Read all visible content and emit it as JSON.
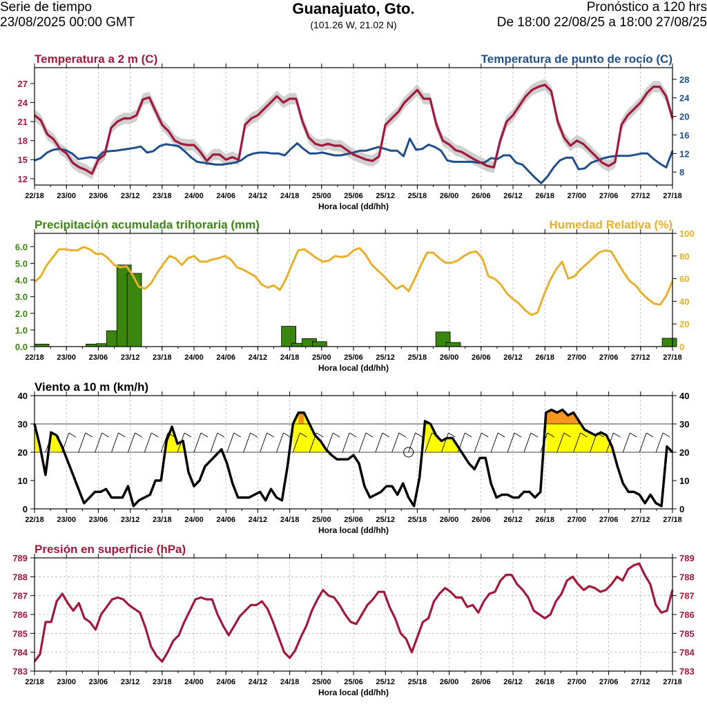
{
  "header": {
    "series_label": "Serie de tiempo",
    "issue_time": "23/08/2025 00:00 GMT",
    "location": "Guanajuato, Gto.",
    "coords": "(101.26 W, 21.02 N)",
    "forecast_label": "Pronóstico a 120 hrs",
    "forecast_range": "De 18:00 22/08/25 a 18:00 27/08/25"
  },
  "colors": {
    "temperature": "#A2183A",
    "dewpoint": "#1F4E8C",
    "precip": "#3A860E",
    "humidity": "#E9AF2A",
    "wind": "#000000",
    "pressure": "#A2183A",
    "wind_fill_20": "#FFFF00",
    "wind_fill_30": "#F7961D",
    "spread": "#D0D0D0"
  },
  "x_ticks": [
    "22/18",
    "23/00",
    "23/06",
    "23/12",
    "23/18",
    "24/00",
    "24/06",
    "24/12",
    "24/18",
    "25/00",
    "25/06",
    "25/12",
    "25/18",
    "26/00",
    "26/06",
    "26/12",
    "26/18",
    "27/00",
    "27/06",
    "27/12",
    "27/18"
  ],
  "chart_data": [
    {
      "type": "line",
      "title": "Temperatura a 2 m (C)",
      "title_right": "Temperatura de punto de rocío (C)",
      "xlabel": "Hora local (dd/hh)",
      "ylim": [
        11,
        29.5
      ],
      "yticks": [
        "12",
        "15",
        "18",
        "21",
        "24",
        "27"
      ],
      "y2lim": [
        5.2,
        30.5
      ],
      "y2ticks": [
        "8",
        "12",
        "16",
        "20",
        "24",
        "28"
      ],
      "series": [
        {
          "name": "Temperatura a 2 m",
          "axis": "left",
          "values": [
            22,
            21.2,
            19,
            18.2,
            16.7,
            16,
            14.5,
            13.8,
            13.4,
            12.8,
            15,
            15.8,
            20,
            21,
            21.5,
            21.5,
            22,
            24.5,
            24.8,
            22.6,
            20.5,
            19.5,
            18,
            17.5,
            17.3,
            17.3,
            16.2,
            14.8,
            15.8,
            15.8,
            15,
            15.4,
            15,
            20.5,
            21.5,
            22,
            23,
            24,
            25,
            24,
            24.6,
            24.6,
            21,
            18.5,
            17.5,
            17.2,
            17.5,
            17.2,
            17.2,
            16.5,
            15.8,
            15.4,
            15,
            14.8,
            15.5,
            20.5,
            21.5,
            22.5,
            24,
            25,
            26,
            24.6,
            24.6,
            20.5,
            18,
            17.4,
            16.5,
            16.2,
            15.6,
            15,
            14.5,
            14,
            13.8,
            18,
            21,
            22,
            23.5,
            25,
            26,
            26.5,
            26.8,
            25.8,
            21,
            18.5,
            17.2,
            18,
            17.5,
            16.5,
            15.5,
            14.5,
            14,
            14.6,
            20.5,
            22,
            23,
            24,
            25.5,
            26.5,
            26.5,
            25,
            21.5
          ]
        },
        {
          "name": "Temperatura de punto de rocío",
          "axis": "right",
          "values": [
            10.5,
            11,
            12.2,
            12.8,
            13,
            12.7,
            12,
            10.8,
            11,
            11.2,
            11,
            12.3,
            12.5,
            12.6,
            12.8,
            13,
            13.2,
            13.5,
            12.2,
            12.5,
            13.6,
            14,
            13.8,
            13.6,
            12.5,
            11.2,
            10.2,
            10,
            9.8,
            9.6,
            9.6,
            9.8,
            10,
            10.5,
            11.5,
            12,
            12.2,
            12.2,
            12,
            12,
            11.6,
            13,
            14.2,
            13,
            12,
            12,
            12.2,
            11.9,
            11.6,
            11.6,
            11.9,
            12.2,
            12.6,
            12.6,
            13,
            13.4,
            13,
            12.6,
            12.6,
            11.4,
            15.2,
            12.8,
            13,
            13.9,
            13.4,
            12.6,
            10.5,
            10.2,
            10.2,
            10.2,
            10.2,
            10,
            10.1,
            11,
            10.8,
            11.6,
            11.6,
            10,
            9.6,
            8.2,
            6.8,
            5.6,
            7,
            9,
            10.5,
            11.1,
            11.1,
            8.6,
            8.8,
            10,
            10.5,
            11,
            11.3,
            11.5,
            11.5,
            11.5,
            11.7,
            12,
            12,
            10.8,
            9.8,
            9,
            12.6
          ]
        }
      ]
    },
    {
      "type": "bar",
      "title": "Precipitación acumulada trihoraria (mm)",
      "title_right": "Humedad Relativa (%)",
      "xlabel": "Hora local (dd/hh)",
      "ylim": [
        0,
        6.8
      ],
      "yticks": [
        "0.0",
        "1.0",
        "2.0",
        "3.0",
        "4.0",
        "5.0",
        "6.0"
      ],
      "y2lim": [
        0,
        100
      ],
      "y2ticks": [
        "0",
        "20",
        "40",
        "60",
        "80",
        "100"
      ],
      "series": [
        {
          "name": "Precipitación acumulada trihoraria",
          "axis": "left",
          "type": "bar",
          "values": [
            0.15,
            0,
            0,
            0,
            0,
            0.15,
            0.18,
            0.95,
            4.9,
            4.4,
            0,
            0,
            0,
            0,
            0,
            0,
            0,
            0,
            0,
            0,
            0,
            0,
            0,
            0,
            1.22,
            0.2,
            0.48,
            0.3,
            0,
            0,
            0,
            0,
            0,
            0,
            0,
            0,
            0,
            0,
            0,
            0.88,
            0.25,
            0,
            0,
            0,
            0,
            0,
            0,
            0,
            0,
            0,
            0,
            0,
            0,
            0,
            0,
            0,
            0,
            0,
            0,
            0,
            0,
            0.5
          ]
        },
        {
          "name": "Humedad Relativa",
          "axis": "right",
          "type": "line",
          "values": [
            57,
            62,
            72,
            79,
            86,
            86,
            85,
            85,
            88,
            86,
            82,
            82,
            78,
            72,
            70,
            71,
            63,
            53,
            51,
            56,
            65,
            73,
            80,
            78,
            72,
            78,
            80,
            75,
            75,
            77,
            78,
            80,
            77,
            70,
            68,
            65,
            62,
            55,
            52,
            54,
            50,
            60,
            73,
            85,
            86,
            82,
            78,
            75,
            76,
            80,
            79,
            80,
            85,
            87,
            81,
            72,
            67,
            62,
            56,
            51,
            54,
            49,
            60,
            72,
            83,
            83,
            78,
            74,
            74,
            76,
            80,
            83,
            84,
            78,
            62,
            60,
            55,
            47,
            42,
            38,
            32,
            28,
            30,
            45,
            58,
            68,
            75,
            60,
            62,
            68,
            73,
            78,
            83,
            85,
            84,
            75,
            66,
            58,
            54,
            47,
            42,
            38,
            37,
            45,
            58
          ]
        }
      ]
    },
    {
      "type": "line",
      "title": "Viento a 10 m (km/h)",
      "xlabel": "Hora local (dd/hh)",
      "ylim": [
        0,
        40
      ],
      "yticks": [
        "0",
        "10",
        "20",
        "30",
        "40"
      ],
      "y2ticks": [
        "0",
        "10",
        "20",
        "30",
        "40"
      ],
      "series": [
        {
          "name": "Viento a 10 m",
          "values": [
            30,
            22,
            12,
            27,
            26,
            22,
            17,
            12,
            7,
            2,
            4,
            6,
            6,
            7,
            4,
            4,
            4,
            8,
            1,
            3,
            4,
            5,
            10,
            10,
            24,
            29,
            23,
            24,
            13,
            8,
            10,
            15,
            17,
            19,
            21,
            16,
            9,
            4,
            4,
            4,
            5,
            6,
            3,
            7,
            4,
            3,
            15,
            30,
            34,
            34,
            30,
            26,
            24,
            21,
            19,
            17.5,
            17.5,
            17.5,
            19,
            16,
            8,
            4,
            5,
            6,
            8,
            8,
            5,
            9,
            4,
            1,
            11,
            31,
            30,
            26,
            24,
            25,
            25,
            22,
            19,
            16,
            14,
            18,
            18,
            9,
            4,
            5,
            5,
            4,
            4,
            6,
            6,
            4,
            6,
            34,
            35,
            34,
            35,
            33,
            34,
            31,
            28,
            27,
            26,
            27,
            26,
            22,
            15,
            9,
            6,
            6,
            5,
            2,
            5,
            2,
            1,
            22,
            20
          ]
        }
      ]
    },
    {
      "type": "line",
      "title": "Presión en superficie (hPa)",
      "xlabel": "Hora local (dd/hh)",
      "ylim": [
        783,
        789
      ],
      "yticks": [
        "783",
        "784",
        "785",
        "786",
        "787",
        "788",
        "789"
      ],
      "y2ticks": [
        "783",
        "784",
        "785",
        "786",
        "787",
        "788",
        "789"
      ],
      "series": [
        {
          "name": "Presión en superficie",
          "values": [
            783.5,
            783.9,
            785.6,
            785.6,
            786.7,
            787.1,
            786.6,
            786.2,
            786.6,
            785.8,
            785.6,
            785.2,
            786,
            786.4,
            786.8,
            786.9,
            786.8,
            786.5,
            786.3,
            786.1,
            785.3,
            784.3,
            783.8,
            783.5,
            784,
            784.6,
            784.9,
            785.6,
            786.2,
            786.8,
            786.9,
            786.8,
            786.8,
            786,
            785.4,
            784.9,
            785.4,
            785.9,
            786.2,
            786.5,
            786.5,
            786.7,
            786.3,
            785.6,
            784.8,
            784,
            783.7,
            784.1,
            784.8,
            785.4,
            786.2,
            786.8,
            787.3,
            787,
            786.9,
            786.5,
            786,
            785.6,
            785.5,
            786,
            786.5,
            786.8,
            787.2,
            787.2,
            786.4,
            785.8,
            785,
            784.7,
            784,
            784.8,
            785.6,
            785.8,
            786.7,
            787.1,
            787.4,
            787.2,
            786.9,
            786.9,
            786.4,
            786.5,
            786.1,
            786.7,
            787.1,
            787.2,
            787.8,
            788.1,
            788.1,
            787.6,
            787.3,
            786.9,
            786.2,
            786,
            785.8,
            786,
            786.7,
            787.1,
            787.8,
            788,
            787.6,
            787.3,
            787.5,
            787.4,
            787.2,
            787.3,
            787.6,
            788,
            787.8,
            788.4,
            788.6,
            788.7,
            788.1,
            787.6,
            786.5,
            786.1,
            786.2,
            787.3
          ]
        }
      ]
    }
  ]
}
